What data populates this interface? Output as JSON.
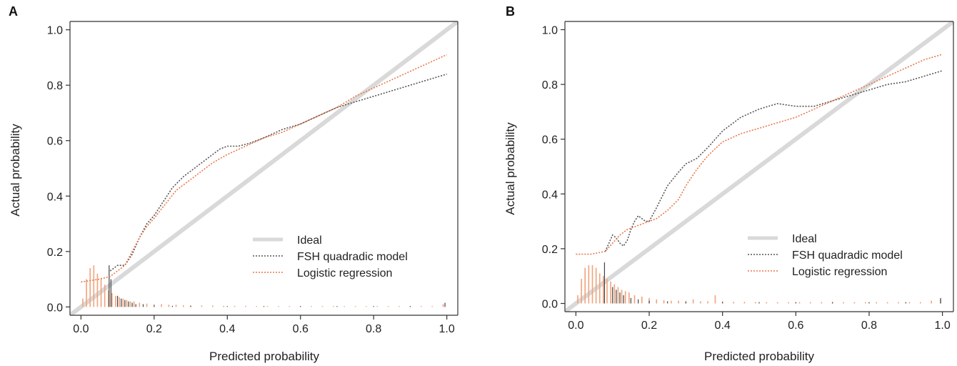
{
  "colors": {
    "ideal": "#d9d9d9",
    "fsh": "#555555",
    "logistic": "#e8774a",
    "spike_logistic": "#f0a37c",
    "spike_fsh": "#444444",
    "axis": "#333333"
  },
  "chart_data": [
    {
      "type": "line",
      "panel_label": "A",
      "xlabel": "Predicted probability",
      "ylabel": "Actual probability",
      "xlim": [
        -0.03,
        1.03
      ],
      "ylim": [
        -0.03,
        1.03
      ],
      "xticks": [
        0.0,
        0.2,
        0.4,
        0.6,
        0.8,
        1.0
      ],
      "yticks": [
        0.0,
        0.2,
        0.4,
        0.6,
        0.8,
        1.0
      ],
      "xtick_labels": [
        "0.0",
        "0.2",
        "0.4",
        "0.6",
        "0.8",
        "1.0"
      ],
      "ytick_labels": [
        "0.0",
        "0.2",
        "0.4",
        "0.6",
        "0.8",
        "1.0"
      ],
      "legend_position": "bottom-right",
      "series": [
        {
          "name": "Ideal",
          "style": "ideal",
          "x": [
            -0.03,
            1.03
          ],
          "y": [
            -0.03,
            1.03
          ]
        },
        {
          "name": "FSH quadradic model",
          "style": "fsh",
          "x": [
            0.08,
            0.1,
            0.12,
            0.14,
            0.16,
            0.18,
            0.2,
            0.22,
            0.25,
            0.28,
            0.3,
            0.33,
            0.36,
            0.38,
            0.4,
            0.43,
            0.46,
            0.5,
            0.55,
            0.6,
            0.65,
            0.7,
            0.75,
            0.8,
            0.85,
            0.9,
            0.95,
            1.0
          ],
          "y": [
            0.13,
            0.15,
            0.15,
            0.19,
            0.25,
            0.3,
            0.33,
            0.37,
            0.43,
            0.47,
            0.49,
            0.52,
            0.55,
            0.57,
            0.58,
            0.58,
            0.59,
            0.61,
            0.64,
            0.66,
            0.69,
            0.72,
            0.74,
            0.76,
            0.78,
            0.8,
            0.82,
            0.84
          ]
        },
        {
          "name": "Logistic regression",
          "style": "logistic",
          "x": [
            0.0,
            0.05,
            0.08,
            0.1,
            0.12,
            0.14,
            0.16,
            0.18,
            0.2,
            0.23,
            0.26,
            0.3,
            0.33,
            0.36,
            0.4,
            0.45,
            0.5,
            0.55,
            0.6,
            0.65,
            0.7,
            0.75,
            0.8,
            0.85,
            0.9,
            0.95,
            1.0
          ],
          "y": [
            0.09,
            0.1,
            0.11,
            0.13,
            0.15,
            0.2,
            0.25,
            0.29,
            0.32,
            0.37,
            0.42,
            0.46,
            0.49,
            0.52,
            0.55,
            0.58,
            0.61,
            0.63,
            0.66,
            0.69,
            0.72,
            0.76,
            0.79,
            0.82,
            0.85,
            0.88,
            0.91
          ]
        }
      ],
      "spikes": {
        "logistic": {
          "x": [
            0.005,
            0.015,
            0.025,
            0.035,
            0.045,
            0.055,
            0.065,
            0.075,
            0.085,
            0.095,
            0.105,
            0.115,
            0.125,
            0.135,
            0.145,
            0.16,
            0.18,
            0.2,
            0.22,
            0.24,
            0.26,
            0.28,
            0.3,
            0.33,
            0.36,
            0.39,
            0.42,
            0.45,
            0.48,
            0.51,
            0.54,
            0.57,
            0.6,
            0.63,
            0.66,
            0.69,
            0.72,
            0.75,
            0.78,
            0.81,
            0.84,
            0.87,
            0.9,
            0.93,
            0.96,
            0.99
          ],
          "y": [
            0.03,
            0.1,
            0.14,
            0.15,
            0.12,
            0.1,
            0.08,
            0.06,
            0.05,
            0.04,
            0.035,
            0.03,
            0.025,
            0.02,
            0.02,
            0.015,
            0.012,
            0.01,
            0.01,
            0.008,
            0.008,
            0.006,
            0.006,
            0.005,
            0.005,
            0.004,
            0.004,
            0.004,
            0.003,
            0.003,
            0.003,
            0.003,
            0.003,
            0.003,
            0.003,
            0.003,
            0.003,
            0.003,
            0.003,
            0.003,
            0.003,
            0.003,
            0.003,
            0.003,
            0.003,
            0.01
          ]
        },
        "fsh": {
          "x": [
            0.077,
            0.082,
            0.1,
            0.11,
            0.12,
            0.13,
            0.14,
            0.15,
            0.17,
            0.2,
            0.25,
            0.3,
            0.4,
            0.5,
            0.6,
            0.7,
            0.8,
            0.9,
            0.995
          ],
          "y": [
            0.15,
            0.1,
            0.04,
            0.03,
            0.025,
            0.02,
            0.015,
            0.01,
            0.01,
            0.005,
            0.004,
            0.003,
            0.003,
            0.003,
            0.003,
            0.003,
            0.003,
            0.003,
            0.015
          ]
        }
      }
    },
    {
      "type": "line",
      "panel_label": "B",
      "xlabel": "Predicted probability",
      "ylabel": "Actual probability",
      "xlim": [
        -0.03,
        1.03
      ],
      "ylim": [
        -0.03,
        1.03
      ],
      "xticks": [
        0.0,
        0.2,
        0.4,
        0.6,
        0.8,
        1.0
      ],
      "yticks": [
        0.0,
        0.2,
        0.4,
        0.6,
        0.8,
        1.0
      ],
      "xtick_labels": [
        "0.0",
        "0.2",
        "0.4",
        "0.6",
        "0.8",
        "1.0"
      ],
      "ytick_labels": [
        "0.0",
        "0.2",
        "0.4",
        "0.6",
        "0.8",
        "1.0"
      ],
      "legend_position": "bottom-right",
      "series": [
        {
          "name": "Ideal",
          "style": "ideal",
          "x": [
            -0.03,
            1.03
          ],
          "y": [
            -0.03,
            1.03
          ]
        },
        {
          "name": "FSH quadradic model",
          "style": "fsh",
          "x": [
            0.08,
            0.09,
            0.1,
            0.11,
            0.12,
            0.13,
            0.14,
            0.15,
            0.16,
            0.17,
            0.18,
            0.19,
            0.2,
            0.22,
            0.25,
            0.28,
            0.3,
            0.33,
            0.36,
            0.4,
            0.45,
            0.5,
            0.55,
            0.6,
            0.65,
            0.7,
            0.75,
            0.8,
            0.85,
            0.9,
            0.95,
            1.0
          ],
          "y": [
            0.19,
            0.22,
            0.25,
            0.24,
            0.22,
            0.21,
            0.23,
            0.27,
            0.3,
            0.32,
            0.31,
            0.3,
            0.3,
            0.35,
            0.43,
            0.48,
            0.51,
            0.53,
            0.57,
            0.63,
            0.68,
            0.71,
            0.73,
            0.72,
            0.72,
            0.74,
            0.76,
            0.78,
            0.8,
            0.81,
            0.83,
            0.85
          ]
        },
        {
          "name": "Logistic regression",
          "style": "logistic",
          "x": [
            0.0,
            0.04,
            0.06,
            0.08,
            0.1,
            0.12,
            0.14,
            0.16,
            0.18,
            0.2,
            0.22,
            0.25,
            0.28,
            0.3,
            0.33,
            0.36,
            0.4,
            0.45,
            0.5,
            0.55,
            0.6,
            0.65,
            0.7,
            0.75,
            0.8,
            0.85,
            0.9,
            0.95,
            1.0
          ],
          "y": [
            0.18,
            0.18,
            0.185,
            0.19,
            0.22,
            0.25,
            0.27,
            0.28,
            0.29,
            0.3,
            0.31,
            0.34,
            0.38,
            0.43,
            0.49,
            0.54,
            0.59,
            0.62,
            0.64,
            0.66,
            0.68,
            0.71,
            0.74,
            0.77,
            0.8,
            0.83,
            0.86,
            0.89,
            0.91
          ]
        }
      ],
      "spikes": {
        "logistic": {
          "x": [
            0.005,
            0.015,
            0.025,
            0.035,
            0.045,
            0.055,
            0.065,
            0.075,
            0.085,
            0.095,
            0.105,
            0.115,
            0.125,
            0.135,
            0.145,
            0.16,
            0.18,
            0.2,
            0.22,
            0.24,
            0.26,
            0.28,
            0.3,
            0.32,
            0.34,
            0.36,
            0.38,
            0.4,
            0.43,
            0.46,
            0.49,
            0.52,
            0.55,
            0.58,
            0.61,
            0.64,
            0.67,
            0.7,
            0.73,
            0.76,
            0.79,
            0.82,
            0.85,
            0.88,
            0.91,
            0.94,
            0.97,
            0.995
          ],
          "y": [
            0.03,
            0.09,
            0.13,
            0.14,
            0.14,
            0.13,
            0.11,
            0.1,
            0.09,
            0.08,
            0.07,
            0.06,
            0.05,
            0.045,
            0.04,
            0.03,
            0.025,
            0.02,
            0.015,
            0.012,
            0.01,
            0.01,
            0.01,
            0.015,
            0.008,
            0.008,
            0.03,
            0.008,
            0.006,
            0.006,
            0.005,
            0.005,
            0.005,
            0.005,
            0.005,
            0.005,
            0.005,
            0.005,
            0.005,
            0.005,
            0.005,
            0.005,
            0.005,
            0.005,
            0.005,
            0.005,
            0.01,
            0.015
          ]
        },
        "fsh": {
          "x": [
            0.078,
            0.1,
            0.11,
            0.12,
            0.13,
            0.15,
            0.17,
            0.2,
            0.25,
            0.3,
            0.4,
            0.5,
            0.6,
            0.7,
            0.8,
            0.9,
            0.995
          ],
          "y": [
            0.15,
            0.06,
            0.05,
            0.04,
            0.03,
            0.02,
            0.015,
            0.01,
            0.008,
            0.006,
            0.005,
            0.005,
            0.005,
            0.005,
            0.005,
            0.005,
            0.02
          ]
        }
      }
    }
  ]
}
